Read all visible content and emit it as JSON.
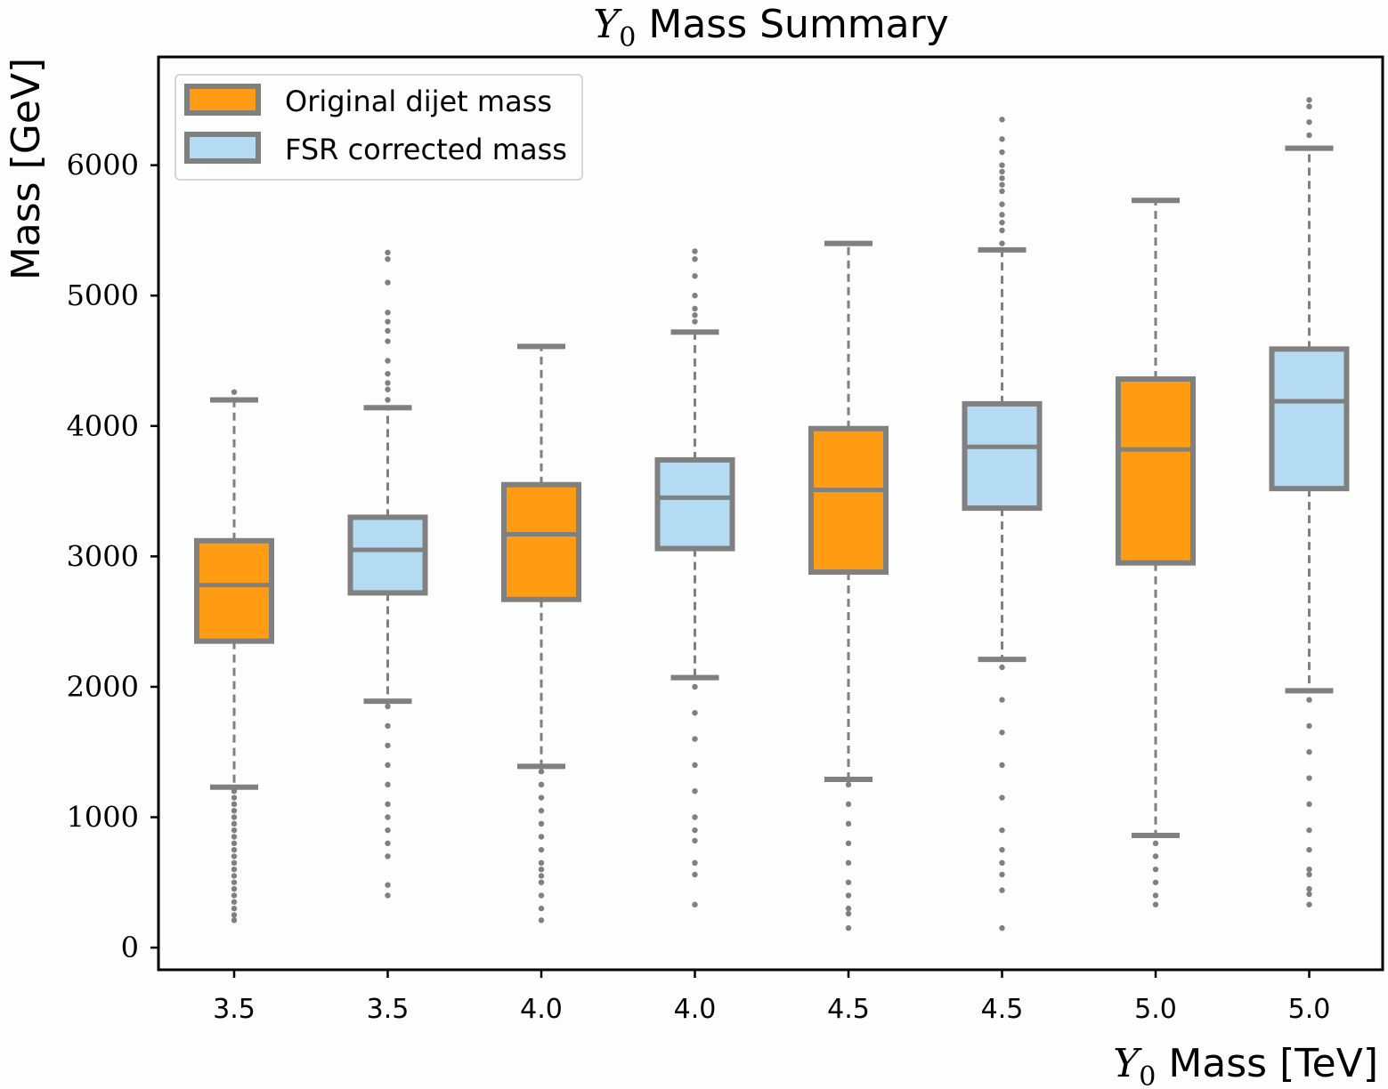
{
  "chart_data": {
    "type": "box",
    "title_symbol": "Y",
    "title_subscript": "0",
    "title_rest": " Mass Summary",
    "xlabel_symbol": "Y",
    "xlabel_subscript": "0",
    "xlabel_rest": " Mass [TeV]",
    "ylabel": "Mass [GeV]",
    "ylim": [
      -170,
      6830
    ],
    "yticks": [
      0,
      1000,
      2000,
      3000,
      4000,
      5000,
      6000
    ],
    "categories": [
      "3.5",
      "3.5",
      "4.0",
      "4.0",
      "4.5",
      "4.5",
      "5.0",
      "5.0"
    ],
    "grid": false,
    "legend_position": "upper-left",
    "legend": [
      {
        "label": "Original dijet mass",
        "color": "#ff9c14"
      },
      {
        "label": "FSR corrected mass",
        "color": "#b5dbf2"
      }
    ],
    "box_edge_color": "#808080",
    "boxes": [
      {
        "series": "Original dijet mass",
        "whislo": 1230,
        "q1": 2350,
        "med": 2780,
        "q3": 3120,
        "whishi": 4200,
        "fliers": [
          1200,
          1150,
          1100,
          1050,
          1000,
          950,
          900,
          850,
          800,
          750,
          700,
          650,
          600,
          550,
          500,
          450,
          400,
          350,
          300,
          250,
          210,
          4260
        ]
      },
      {
        "series": "FSR corrected mass",
        "whislo": 1890,
        "q1": 2720,
        "med": 3050,
        "q3": 3300,
        "whishi": 4140,
        "fliers": [
          1850,
          1700,
          1550,
          1400,
          1250,
          1100,
          1000,
          900,
          800,
          700,
          480,
          400,
          4200,
          4280,
          4330,
          4400,
          4500,
          4650,
          4730,
          4800,
          4870,
          5100,
          5280,
          5330
        ]
      },
      {
        "series": "Original dijet mass",
        "whislo": 1390,
        "q1": 2670,
        "med": 3170,
        "q3": 3550,
        "whishi": 4610,
        "fliers": [
          1350,
          1250,
          1150,
          1050,
          950,
          850,
          750,
          650,
          600,
          550,
          500,
          400,
          300,
          210
        ]
      },
      {
        "series": "FSR corrected mass",
        "whislo": 2070,
        "q1": 3060,
        "med": 3450,
        "q3": 3740,
        "whishi": 4720,
        "fliers": [
          2000,
          1800,
          1600,
          1400,
          1200,
          1000,
          900,
          820,
          650,
          560,
          330,
          4800,
          4850,
          4900,
          5000,
          5150,
          5280,
          5340
        ]
      },
      {
        "series": "Original dijet mass",
        "whislo": 1290,
        "q1": 2880,
        "med": 3510,
        "q3": 3980,
        "whishi": 5400,
        "fliers": [
          1250,
          1100,
          950,
          800,
          650,
          500,
          400,
          300,
          260,
          150
        ]
      },
      {
        "series": "FSR corrected mass",
        "whislo": 2210,
        "q1": 3370,
        "med": 3840,
        "q3": 4170,
        "whishi": 5350,
        "fliers": [
          2150,
          1900,
          1650,
          1400,
          1150,
          900,
          750,
          650,
          560,
          440,
          150,
          5400,
          5500,
          5560,
          5620,
          5700,
          5800,
          5850,
          5900,
          5950,
          6000,
          6100,
          6200,
          6350
        ]
      },
      {
        "series": "Original dijet mass",
        "whislo": 860,
        "q1": 2950,
        "med": 3820,
        "q3": 4360,
        "whishi": 5730,
        "fliers": [
          800,
          700,
          600,
          500,
          400,
          330
        ]
      },
      {
        "series": "FSR corrected mass",
        "whislo": 1970,
        "q1": 3520,
        "med": 4190,
        "q3": 4590,
        "whishi": 6130,
        "fliers": [
          1900,
          1700,
          1500,
          1300,
          1100,
          900,
          750,
          600,
          560,
          450,
          410,
          330,
          6230,
          6330,
          6450,
          6500
        ]
      }
    ]
  }
}
